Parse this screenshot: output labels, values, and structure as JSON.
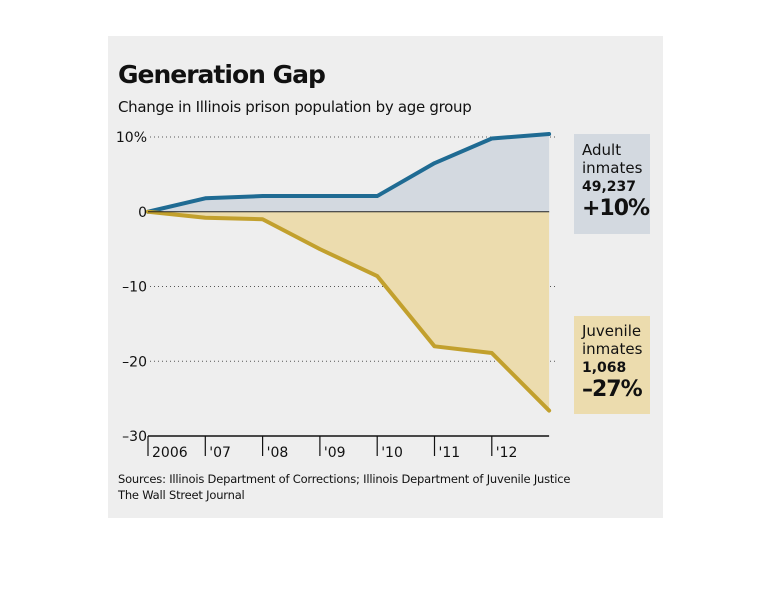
{
  "header": {
    "title": "Generation Gap",
    "subtitle": "Change in Illinois prison population by age group"
  },
  "chart_data": {
    "type": "area",
    "x": [
      "2006",
      "'07",
      "'08",
      "'09",
      "'10",
      "'11",
      "'12",
      "'12.9"
    ],
    "x_tick_labels": [
      "2006",
      "'07",
      "'08",
      "'09",
      "'10",
      "'11",
      "'12"
    ],
    "y_tick_labels": [
      "10%",
      "0",
      "–10",
      "–20",
      "–30"
    ],
    "y_ticks": [
      10,
      0,
      -10,
      -20,
      -30
    ],
    "ylim": [
      -30,
      10
    ],
    "grid": "dotted horizontal",
    "series": [
      {
        "name": "Adult inmates",
        "color": "#1f6b93",
        "fill": "#d3d9e0",
        "values": [
          0,
          1.8,
          2.1,
          2.1,
          2.1,
          6.5,
          9.8,
          10.4
        ]
      },
      {
        "name": "Juvenile inmates",
        "color": "#c2a02d",
        "fill": "#ecdcae",
        "values": [
          0,
          -0.8,
          -1.0,
          -5.0,
          -8.6,
          -18.0,
          -18.9,
          -26.6
        ]
      }
    ]
  },
  "callouts": {
    "adult": {
      "label_line1": "Adult",
      "label_line2": "inmates",
      "count": "49,237",
      "change": "+10%",
      "bg": "#d3d9e0"
    },
    "juvenile": {
      "label_line1": "Juvenile",
      "label_line2": "inmates",
      "count": "1,068",
      "change": "–27%",
      "bg": "#ecdcae"
    }
  },
  "footer": {
    "sources": "Sources: Illinois Department of Corrections; Illinois Department of Juvenile Justice",
    "credit": "The Wall Street Journal"
  }
}
